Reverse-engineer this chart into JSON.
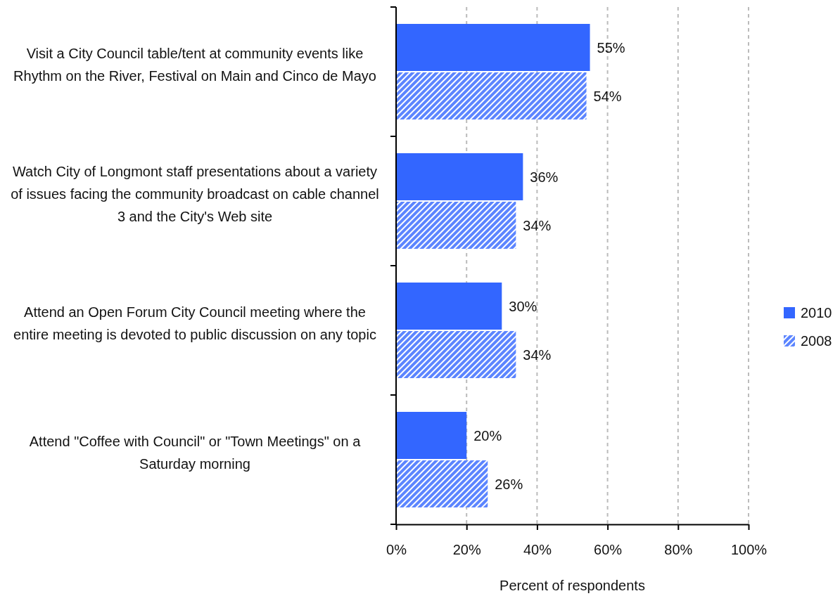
{
  "chart_data": {
    "type": "bar",
    "orientation": "horizontal",
    "xlabel": "Percent of respondents",
    "categories": [
      "Visit a City Council table/tent at community events like Rhythm on the River, Festival on Main and Cinco de Mayo",
      "Watch City of Longmont staff presentations about a variety of issues facing the community broadcast on cable channel 3 and the City's Web site",
      "Attend an Open Forum City Council meeting where the entire meeting is devoted to public discussion on any topic",
      "Attend \"Coffee with Council\" or \"Town Meetings\" on a Saturday morning"
    ],
    "series": [
      {
        "name": "2010",
        "color": "#3366ff",
        "values": [
          55,
          36,
          30,
          20
        ],
        "value_labels": [
          "55%",
          "36%",
          "30%",
          "20%"
        ]
      },
      {
        "name": "2008",
        "color": "#5c85ff",
        "values": [
          54,
          34,
          34,
          26
        ],
        "value_labels": [
          "54%",
          "34%",
          "34%",
          "26%"
        ]
      }
    ],
    "xlim": [
      0,
      100
    ],
    "xticks": [
      {
        "value": 0,
        "label": "0%"
      },
      {
        "value": 20,
        "label": "20%"
      },
      {
        "value": 40,
        "label": "40%"
      },
      {
        "value": 60,
        "label": "60%"
      },
      {
        "value": 80,
        "label": "80%"
      },
      {
        "value": 100,
        "label": "100%"
      }
    ],
    "grid": "x",
    "legend": "right"
  }
}
